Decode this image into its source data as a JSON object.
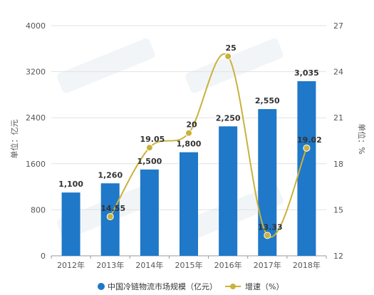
{
  "chart_data": {
    "type": "bar",
    "categories": [
      "2012年",
      "2013年",
      "2014年",
      "2015年",
      "2016年",
      "2017年",
      "2018年"
    ],
    "series": [
      {
        "name": "中国冷链物流市场规模（亿元）",
        "type": "bar",
        "axis": "left",
        "values": [
          1100,
          1260,
          1500,
          1800,
          2250,
          2550,
          3035
        ],
        "labels": [
          "1,100",
          "1,260",
          "1,500",
          "1,800",
          "2,250",
          "2,550",
          "3,035"
        ],
        "color": "#1f78c8"
      },
      {
        "name": "增速（%）",
        "type": "line",
        "axis": "right",
        "values": [
          null,
          14.55,
          19.05,
          20,
          25,
          13.33,
          19.02
        ],
        "labels": [
          "",
          "14.55",
          "19.05",
          "20",
          "25",
          "13.33",
          "19.02"
        ],
        "color": "#c9b23a"
      }
    ],
    "y_left": {
      "label": "单位：亿元",
      "ylim": [
        0,
        4000
      ],
      "ticks": [
        "0",
        "800",
        "1600",
        "2400",
        "3200",
        "4000"
      ]
    },
    "y_right": {
      "label": "单位：%",
      "ylim": [
        12,
        27
      ],
      "ticks": [
        "12",
        "15",
        "18",
        "21",
        "24",
        "27"
      ]
    },
    "grid": true,
    "legend_position": "bottom"
  }
}
